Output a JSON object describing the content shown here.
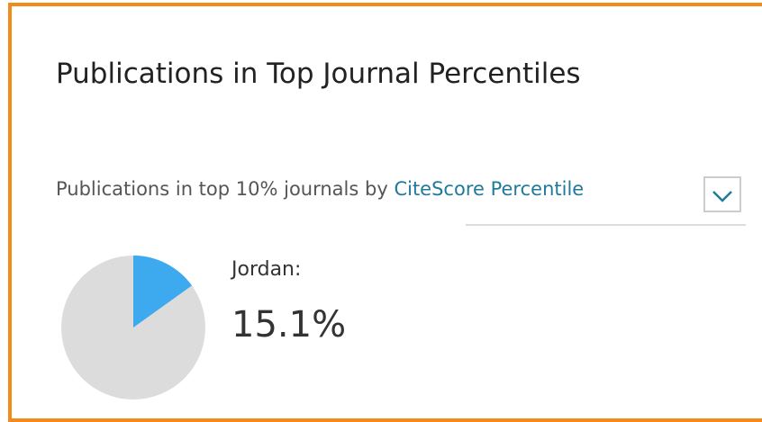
{
  "header": {
    "title": "Publications in Top Journal Percentiles"
  },
  "filter": {
    "prefix": "Publications in top 10% journals by",
    "link": "CiteScore Percentile"
  },
  "chart_data": {
    "type": "pie",
    "label": "Jordan:",
    "values": [
      15.1
    ],
    "value_labels": [
      "15.1%"
    ],
    "color": "#3daaf0",
    "rest_color": "#dcdcdc"
  }
}
